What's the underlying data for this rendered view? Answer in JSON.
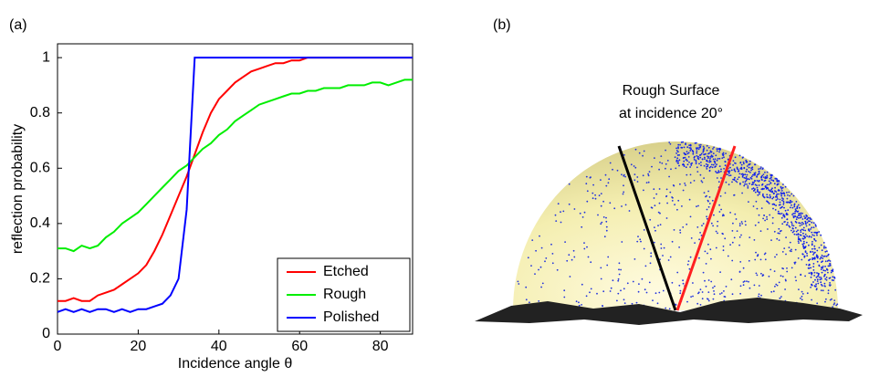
{
  "chart_data": {
    "type": "line",
    "panel_label": "(a)",
    "x_label": "Incidence angle θ",
    "y_label": "reflection probability",
    "x": [
      0,
      2,
      4,
      6,
      8,
      10,
      12,
      14,
      16,
      18,
      20,
      22,
      24,
      26,
      28,
      30,
      32,
      34,
      36,
      38,
      40,
      42,
      44,
      46,
      48,
      50,
      52,
      54,
      56,
      58,
      60,
      62,
      64,
      66,
      68,
      70,
      72,
      74,
      76,
      78,
      80,
      82,
      84,
      86,
      88
    ],
    "series": [
      {
        "name": "Etched",
        "color": "#ff0000",
        "values": [
          0.12,
          0.12,
          0.13,
          0.12,
          0.12,
          0.14,
          0.15,
          0.16,
          0.18,
          0.2,
          0.22,
          0.25,
          0.3,
          0.36,
          0.43,
          0.5,
          0.57,
          0.65,
          0.73,
          0.8,
          0.85,
          0.88,
          0.91,
          0.93,
          0.95,
          0.96,
          0.97,
          0.98,
          0.98,
          0.99,
          0.99,
          1,
          1,
          1,
          1,
          1,
          1,
          1,
          1,
          1,
          1,
          1,
          1,
          1,
          1
        ]
      },
      {
        "name": "Rough",
        "color": "#00ee00",
        "values": [
          0.31,
          0.31,
          0.3,
          0.32,
          0.31,
          0.32,
          0.35,
          0.37,
          0.4,
          0.42,
          0.44,
          0.47,
          0.5,
          0.53,
          0.56,
          0.59,
          0.61,
          0.64,
          0.67,
          0.69,
          0.72,
          0.74,
          0.77,
          0.79,
          0.81,
          0.83,
          0.84,
          0.85,
          0.86,
          0.87,
          0.87,
          0.88,
          0.88,
          0.89,
          0.89,
          0.89,
          0.9,
          0.9,
          0.9,
          0.91,
          0.91,
          0.9,
          0.91,
          0.92,
          0.92
        ]
      },
      {
        "name": "Polished",
        "color": "#0000ff",
        "values": [
          0.08,
          0.09,
          0.08,
          0.09,
          0.08,
          0.09,
          0.09,
          0.08,
          0.09,
          0.08,
          0.09,
          0.09,
          0.1,
          0.11,
          0.14,
          0.2,
          0.45,
          1,
          1,
          1,
          1,
          1,
          1,
          1,
          1,
          1,
          1,
          1,
          1,
          1,
          1,
          1,
          1,
          1,
          1,
          1,
          1,
          1,
          1,
          1,
          1,
          1,
          1,
          1,
          1
        ]
      }
    ],
    "xlim": [
      0,
      88
    ],
    "xticks": [
      0,
      20,
      40,
      60,
      80
    ],
    "ylim": [
      0,
      1.05
    ],
    "yticks": [
      0,
      0.2,
      0.4,
      0.6,
      0.8,
      1
    ],
    "grid": false,
    "legend": "lower right"
  },
  "panel_b": {
    "label": "(b)",
    "title_lines": [
      "Rough Surface",
      "at incidence 20°"
    ]
  }
}
